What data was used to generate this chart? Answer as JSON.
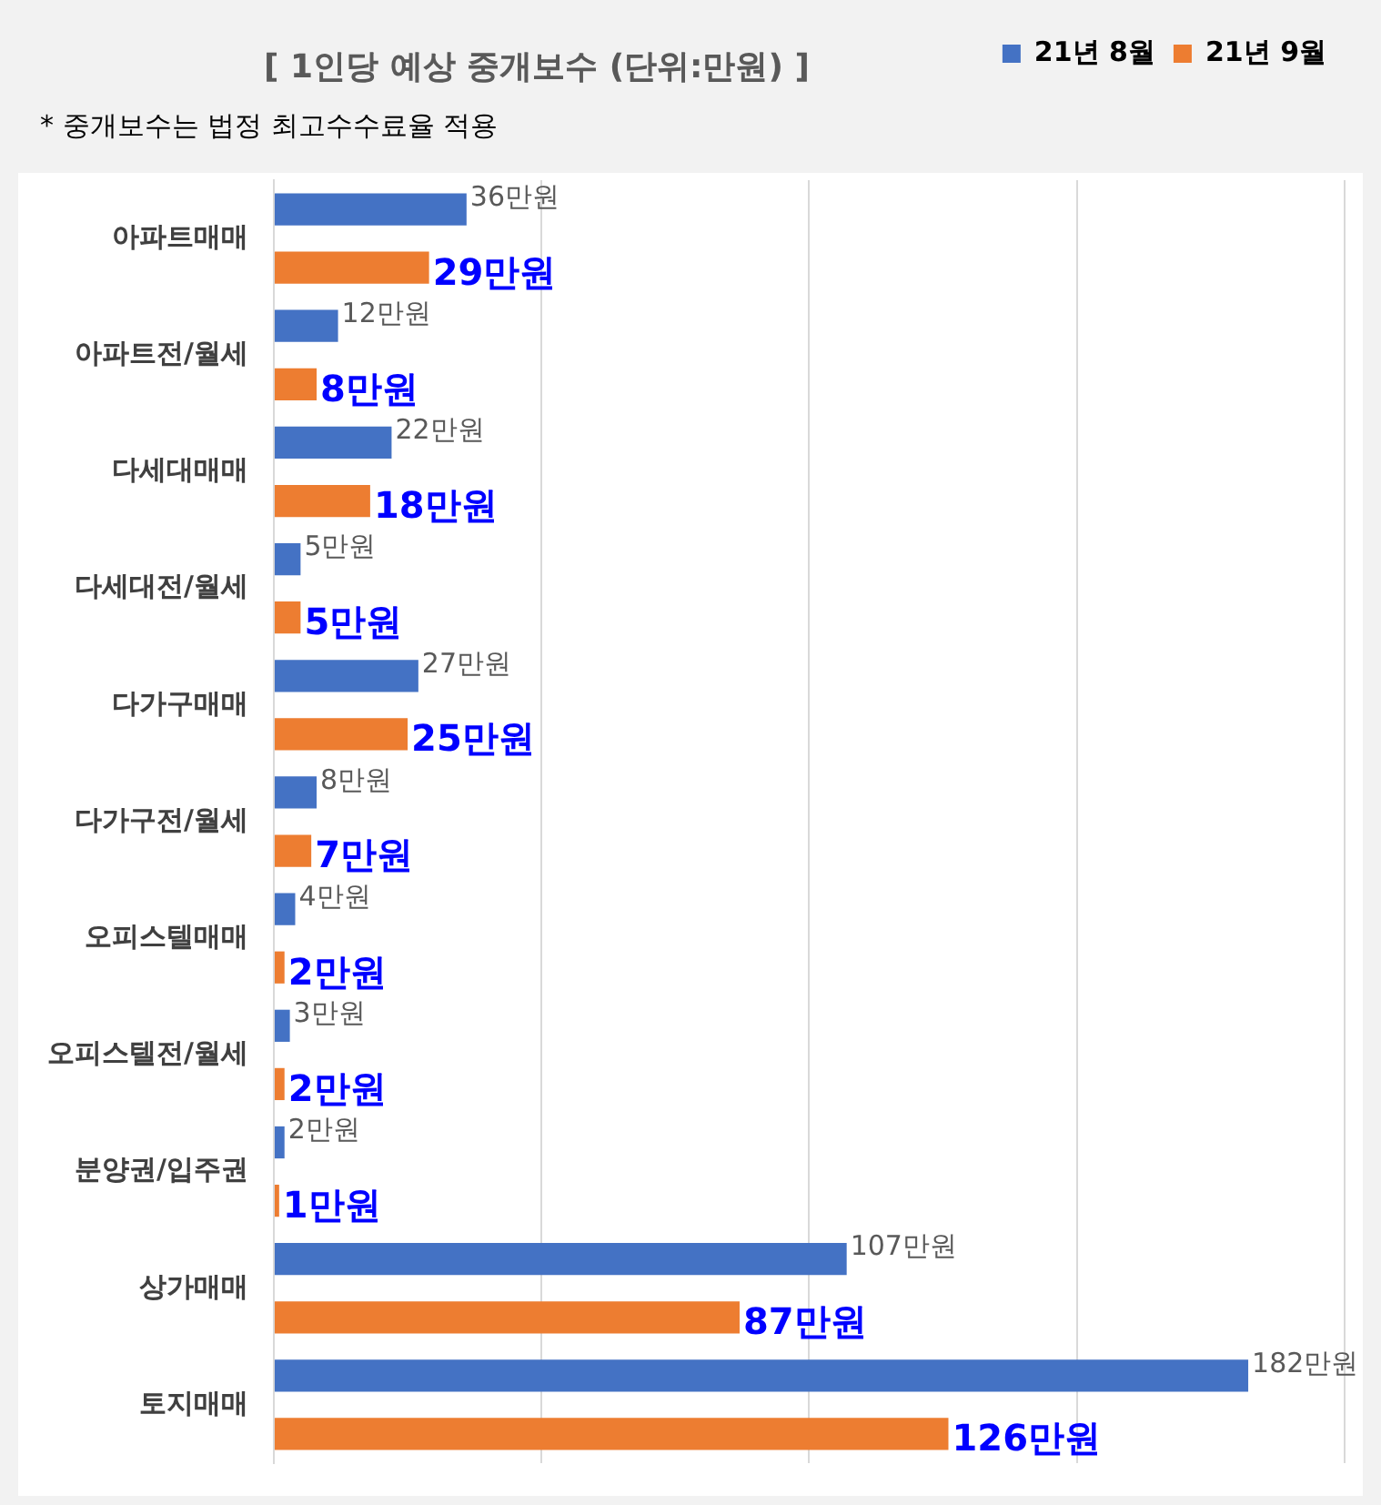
{
  "chart_data": {
    "type": "bar",
    "orientation": "horizontal",
    "title": "[ 1인당 예상 중개보수 (단위:만원) ]",
    "annotations": [
      "* 중개보수는 법정 최고수수료율 적용"
    ],
    "categories": [
      "아파트매매",
      "아파트전/월세",
      "다세대매매",
      "다세대전/월세",
      "다가구매매",
      "다가구전/월세",
      "오피스텔매매",
      "오피스텔전/월세",
      "분양권/입주권",
      "상가매매",
      "토지매매"
    ],
    "series": [
      {
        "name": "21년 8월",
        "color": "#4472c4",
        "values": [
          36,
          12,
          22,
          5,
          27,
          8,
          4,
          3,
          2,
          107,
          182
        ],
        "value_labels": [
          "36만원",
          "12만원",
          "22만원",
          "5만원",
          "27만원",
          "8만원",
          "4만원",
          "3만원",
          "2만원",
          "107만원",
          "182만원"
        ]
      },
      {
        "name": "21년 9월",
        "color": "#ed7d31",
        "values": [
          29,
          8,
          18,
          5,
          25,
          7,
          2,
          2,
          1,
          87,
          126
        ],
        "value_labels": [
          "29만원",
          "8만원",
          "18만원",
          "5만원",
          "25만원",
          "7만원",
          "2만원",
          "2만원",
          "1만원",
          "87만원",
          "126만원"
        ]
      }
    ],
    "xlim": [
      0,
      200
    ],
    "xticks": [
      {
        "value": 0,
        "label": null
      },
      {
        "value": 50,
        "label": null
      },
      {
        "value": 100,
        "label": null
      },
      {
        "value": 150,
        "label": null
      },
      {
        "value": 200,
        "label": null
      }
    ],
    "tick_labels": "y",
    "grid": "x",
    "legend": "top right"
  }
}
